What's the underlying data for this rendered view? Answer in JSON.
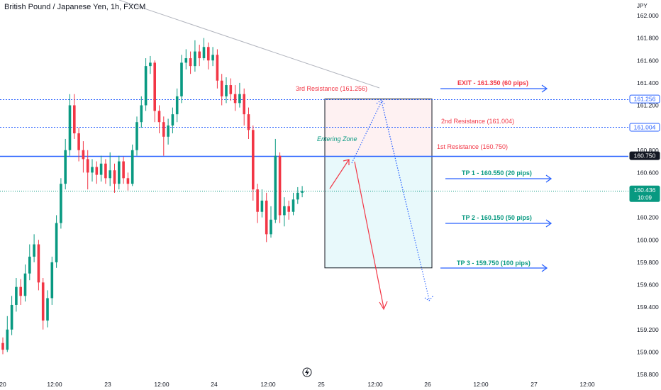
{
  "header": {
    "symbol": "British Pound / Japanese Yen, 1h, FXCM"
  },
  "chart_data": {
    "type": "candlestick",
    "title": "British Pound / Japanese Yen, 1h, FXCM",
    "y_unit": "JPY",
    "ylim": [
      158.8,
      162.1
    ],
    "y_ticks": [
      "162.000",
      "161.800",
      "161.600",
      "161.400",
      "161.200",
      "160.800",
      "160.600",
      "160.200",
      "160.000",
      "159.800",
      "159.600",
      "159.400",
      "159.200",
      "159.000",
      "158.800"
    ],
    "x_ticks": [
      "20",
      "12:00",
      "23",
      "12:00",
      "24",
      "12:00",
      "25",
      "12:00",
      "26",
      "12:00",
      "27",
      "12:00"
    ],
    "price_labels": [
      {
        "text": "161.256",
        "value": 161.256,
        "color": "#2962ff",
        "filled": false
      },
      {
        "text": "161.004",
        "value": 161.004,
        "color": "#2962ff",
        "filled": false
      },
      {
        "text": "160.750",
        "value": 160.75,
        "color": "#131722",
        "filled": true
      },
      {
        "text": "160.436",
        "value": 160.436,
        "sub": "10:09",
        "color": "#089981",
        "filled": true
      }
    ],
    "levels": [
      {
        "value": 161.256,
        "style": "dotted",
        "color": "#2962ff"
      },
      {
        "value": 161.004,
        "style": "dotted",
        "color": "#2962ff"
      },
      {
        "value": 160.75,
        "style": "solid",
        "color": "#2962ff"
      },
      {
        "value": 160.436,
        "style": "dotted",
        "color": "#089981"
      }
    ],
    "annotations": [
      {
        "text": "3rd Resistance (161.256)",
        "color": "#f23645"
      },
      {
        "text": "2nd Resistance (161.004)",
        "color": "#f23645"
      },
      {
        "text": "1st Resistance (160.750)",
        "color": "#f23645"
      },
      {
        "text": "Entering Zone",
        "color": "#089981"
      },
      {
        "text": "EXIT - 161.350 (60 pips)",
        "color": "#f23645"
      },
      {
        "text": "TP 1 - 160.550 (20 pips)",
        "color": "#089981"
      },
      {
        "text": "TP 2 - 160.150 (50 pips)",
        "color": "#089981"
      },
      {
        "text": "TP 3 - 159.750 (100 pips)",
        "color": "#089981"
      }
    ],
    "position_box": {
      "entry": 160.75,
      "stop": 161.256,
      "target": 159.75
    },
    "colors": {
      "up": "#089981",
      "down": "#f23645",
      "level": "#2962ff"
    },
    "candles": [
      [
        159.08,
        159.02,
        159.13,
        158.98
      ],
      [
        159.02,
        159.2,
        159.32,
        159.0
      ],
      [
        159.2,
        159.42,
        159.5,
        159.15
      ],
      [
        159.42,
        159.58,
        159.66,
        159.36
      ],
      [
        159.58,
        159.5,
        159.65,
        159.42
      ],
      [
        159.5,
        159.7,
        159.78,
        159.45
      ],
      [
        159.7,
        159.85,
        159.96,
        159.64
      ],
      [
        159.85,
        159.96,
        160.05,
        159.8
      ],
      [
        159.96,
        159.62,
        160.0,
        159.55
      ],
      [
        159.62,
        159.28,
        159.66,
        159.2
      ],
      [
        159.28,
        159.48,
        159.55,
        159.22
      ],
      [
        159.48,
        159.8,
        159.85,
        159.42
      ],
      [
        159.8,
        160.15,
        160.22,
        159.75
      ],
      [
        160.15,
        160.5,
        160.55,
        160.1
      ],
      [
        160.5,
        160.8,
        160.9,
        160.45
      ],
      [
        160.8,
        161.2,
        161.3,
        160.75
      ],
      [
        161.2,
        160.95,
        161.3,
        160.9
      ],
      [
        160.95,
        160.8,
        161.0,
        160.7
      ],
      [
        160.8,
        160.72,
        160.88,
        160.6
      ],
      [
        160.72,
        160.6,
        160.8,
        160.45
      ],
      [
        160.6,
        160.65,
        160.72,
        160.52
      ],
      [
        160.65,
        160.58,
        160.7,
        160.5
      ],
      [
        160.58,
        160.68,
        160.75,
        160.52
      ],
      [
        160.68,
        160.55,
        160.72,
        160.5
      ],
      [
        160.55,
        160.62,
        160.78,
        160.48
      ],
      [
        160.62,
        160.5,
        160.68,
        160.42
      ],
      [
        160.5,
        160.7,
        160.75,
        160.45
      ],
      [
        160.7,
        160.55,
        160.74,
        160.5
      ],
      [
        160.55,
        160.5,
        160.6,
        160.44
      ],
      [
        160.5,
        160.8,
        160.85,
        160.48
      ],
      [
        160.8,
        161.05,
        161.1,
        160.75
      ],
      [
        161.05,
        161.2,
        161.28,
        161.0
      ],
      [
        161.2,
        161.55,
        161.62,
        161.15
      ],
      [
        161.55,
        161.58,
        161.64,
        161.48
      ],
      [
        161.58,
        161.15,
        161.6,
        161.05
      ],
      [
        161.15,
        161.05,
        161.2,
        160.95
      ],
      [
        161.05,
        160.92,
        161.1,
        160.75
      ],
      [
        160.92,
        161.02,
        161.08,
        160.85
      ],
      [
        161.02,
        161.12,
        161.18,
        160.95
      ],
      [
        161.12,
        161.28,
        161.35,
        161.05
      ],
      [
        161.28,
        161.58,
        161.65,
        161.22
      ],
      [
        161.58,
        161.62,
        161.7,
        161.52
      ],
      [
        161.62,
        161.55,
        161.68,
        161.48
      ],
      [
        161.55,
        161.68,
        161.78,
        161.5
      ],
      [
        161.68,
        161.62,
        161.74,
        161.55
      ],
      [
        161.62,
        161.72,
        161.8,
        161.6
      ],
      [
        161.72,
        161.6,
        161.76,
        161.52
      ],
      [
        161.6,
        161.65,
        161.72,
        161.55
      ],
      [
        161.65,
        161.42,
        161.7,
        161.35
      ],
      [
        161.42,
        161.28,
        161.48,
        161.2
      ],
      [
        161.28,
        161.38,
        161.45,
        161.22
      ],
      [
        161.38,
        161.3,
        161.44,
        161.24
      ],
      [
        161.3,
        161.22,
        161.38,
        161.15
      ],
      [
        161.22,
        161.3,
        161.4,
        161.18
      ],
      [
        161.3,
        161.12,
        161.35,
        161.02
      ],
      [
        161.12,
        160.98,
        161.18,
        160.9
      ],
      [
        160.98,
        160.45,
        161.02,
        160.35
      ],
      [
        160.45,
        160.25,
        160.5,
        160.15
      ],
      [
        160.25,
        160.35,
        160.45,
        160.2
      ],
      [
        160.35,
        160.05,
        160.42,
        159.98
      ],
      [
        160.05,
        160.18,
        160.3,
        160.02
      ],
      [
        160.18,
        160.75,
        160.9,
        160.15
      ],
      [
        160.75,
        160.22,
        160.78,
        160.15
      ],
      [
        160.22,
        160.3,
        160.38,
        160.12
      ],
      [
        160.3,
        160.25,
        160.35,
        160.18
      ],
      [
        160.25,
        160.36,
        160.42,
        160.22
      ],
      [
        160.36,
        160.42,
        160.47,
        160.32
      ],
      [
        160.42,
        160.436,
        160.48,
        160.38
      ]
    ]
  }
}
